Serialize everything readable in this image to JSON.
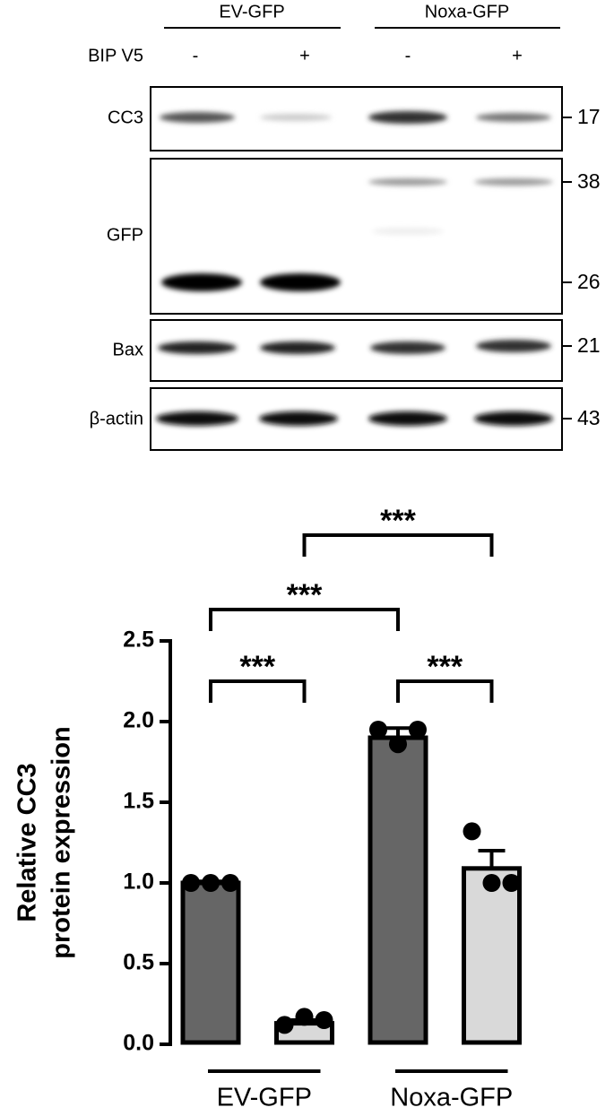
{
  "blot": {
    "group_labels": [
      "EV-GFP",
      "Noxa-GFP"
    ],
    "treatment_label": "BIP V5",
    "treatment_signs": [
      "-",
      "+",
      "-",
      "+"
    ],
    "rows": [
      {
        "label": "CC3",
        "markers": [
          "17"
        ]
      },
      {
        "label": "GFP",
        "markers": [
          "38",
          "26"
        ]
      },
      {
        "label": "Bax",
        "markers": [
          "21"
        ]
      },
      {
        "label": "β-actin",
        "markers": [
          "43"
        ]
      }
    ]
  },
  "chart_data": {
    "type": "bar",
    "ylabel": [
      "Relative CC3",
      "protein expression"
    ],
    "categories": [
      null,
      null,
      null,
      null
    ],
    "groups": [
      "EV-GFP",
      "Noxa-GFP"
    ],
    "values": [
      1.0,
      0.13,
      1.9,
      1.09
    ],
    "errors": [
      0.01,
      0.02,
      0.06,
      0.11
    ],
    "colors": [
      "#666666",
      "#d9d9d9",
      "#666666",
      "#d9d9d9"
    ],
    "points": [
      [
        1.0,
        1.0,
        1.0
      ],
      [
        0.12,
        0.17,
        0.15
      ],
      [
        1.95,
        1.86,
        1.95
      ],
      [
        1.32,
        1.0,
        1.0
      ]
    ],
    "ylim": [
      0,
      2.5
    ],
    "yticks": [
      {
        "value": 0,
        "label": "0.0"
      },
      0.5,
      {
        "value": 1,
        "label": "1.0"
      },
      1.5,
      {
        "value": 2,
        "label": "2.0"
      },
      2.5
    ],
    "comparisons": [
      {
        "pair": [
          0,
          1
        ],
        "label": "***"
      },
      {
        "pair": [
          2,
          3
        ],
        "label": "***"
      },
      {
        "pair": [
          0,
          2
        ],
        "label": "***"
      },
      {
        "pair": [
          1,
          3
        ],
        "label": "***"
      }
    ]
  }
}
